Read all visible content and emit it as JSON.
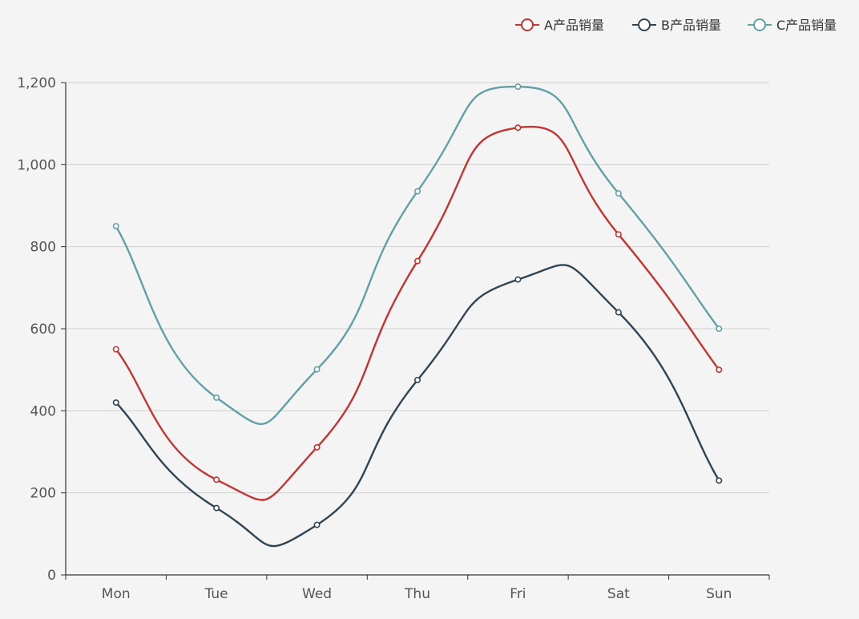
{
  "chart_data": {
    "type": "line",
    "smooth": true,
    "categories": [
      "Mon",
      "Tue",
      "Wed",
      "Thu",
      "Fri",
      "Sat",
      "Sun"
    ],
    "series": [
      {
        "name": "A产品销量",
        "color": "#c23531",
        "values": [
          550,
          232,
          311,
          765,
          1090,
          830,
          500
        ]
      },
      {
        "name": "B产品销量",
        "color": "#2f4554",
        "values": [
          420,
          163,
          122,
          475,
          720,
          640,
          230
        ]
      },
      {
        "name": "C产品销量",
        "color": "#61a0a8",
        "values": [
          850,
          432,
          501,
          935,
          1190,
          930,
          600
        ]
      }
    ],
    "yticks": [
      0,
      200,
      400,
      600,
      800,
      1000,
      1200
    ],
    "ytick_labels": [
      "0",
      "200",
      "400",
      "600",
      "800",
      "1,000",
      "1,200"
    ],
    "ylim": [
      0,
      1200
    ],
    "grid": true,
    "legend_position": "top-right",
    "title": "",
    "xlabel": "",
    "ylabel": ""
  }
}
